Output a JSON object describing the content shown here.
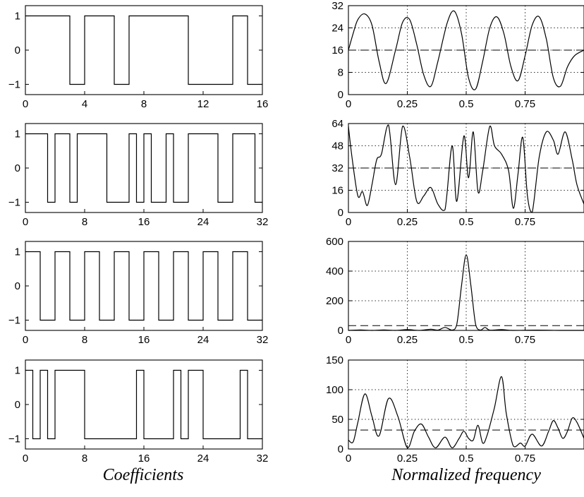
{
  "xlabels": {
    "left": "Coefficients",
    "right": "Normalized frequency"
  },
  "style": {
    "line": "#000000",
    "background": "#ffffff"
  },
  "chart_data": [
    {
      "type": "line",
      "panel": "left",
      "xlim": [
        0,
        16
      ],
      "ylim": [
        -1.3,
        1.3
      ],
      "xticks": [
        0,
        4,
        8,
        12,
        16
      ],
      "xtick_labels": [
        "0",
        "4",
        "8",
        "12",
        "16"
      ],
      "yticks": [
        -1,
        0,
        1
      ],
      "ytick_labels": [
        "−1",
        "0",
        "1"
      ],
      "transitions": [
        0,
        3,
        4,
        6,
        7,
        11,
        14,
        15,
        16
      ],
      "values": [
        1,
        -1,
        1,
        -1,
        1,
        -1,
        1,
        -1
      ]
    },
    {
      "type": "line",
      "panel": "left",
      "xlim": [
        0,
        32
      ],
      "ylim": [
        -1.3,
        1.3
      ],
      "xticks": [
        0,
        8,
        16,
        24,
        32
      ],
      "xtick_labels": [
        "0",
        "8",
        "16",
        "24",
        "32"
      ],
      "yticks": [
        -1,
        0,
        1
      ],
      "ytick_labels": [
        "−1",
        "0",
        "1"
      ],
      "transitions": [
        0,
        3,
        4,
        6,
        7,
        11,
        14,
        15,
        16,
        17,
        19,
        20,
        22,
        26,
        28,
        31,
        32
      ],
      "values": [
        1,
        -1,
        1,
        -1,
        1,
        -1,
        1,
        -1,
        1,
        -1,
        1,
        -1,
        1,
        -1,
        1,
        -1
      ]
    },
    {
      "type": "line",
      "panel": "left",
      "xlim": [
        0,
        32
      ],
      "ylim": [
        -1.3,
        1.3
      ],
      "xticks": [
        0,
        8,
        16,
        24,
        32
      ],
      "xtick_labels": [
        "0",
        "8",
        "16",
        "24",
        "32"
      ],
      "yticks": [
        -1,
        0,
        1
      ],
      "ytick_labels": [
        "−1",
        "0",
        "1"
      ],
      "transitions": [
        0,
        2,
        4,
        6,
        8,
        10,
        12,
        14,
        16,
        18,
        20,
        22,
        24,
        26,
        28,
        30,
        32
      ],
      "values": [
        1,
        -1,
        1,
        -1,
        1,
        -1,
        1,
        -1,
        1,
        -1,
        1,
        -1,
        1,
        -1,
        1,
        -1
      ]
    },
    {
      "type": "line",
      "panel": "left",
      "xlim": [
        0,
        32
      ],
      "ylim": [
        -1.3,
        1.3
      ],
      "xticks": [
        0,
        8,
        16,
        24,
        32
      ],
      "xtick_labels": [
        "0",
        "8",
        "16",
        "24",
        "32"
      ],
      "yticks": [
        -1,
        0,
        1
      ],
      "ytick_labels": [
        "−1",
        "0",
        "1"
      ],
      "transitions": [
        0,
        1,
        2,
        3,
        4,
        8,
        15,
        16,
        20,
        21,
        22,
        24,
        29,
        30,
        32
      ],
      "values": [
        1,
        -1,
        1,
        -1,
        1,
        -1,
        1,
        -1,
        1,
        -1,
        1,
        -1,
        1,
        -1
      ]
    },
    {
      "type": "line",
      "panel": "right",
      "xlim": [
        0,
        1
      ],
      "ylim": [
        0,
        32
      ],
      "xticks": [
        0,
        0.25,
        0.5,
        0.75,
        1
      ],
      "xtick_labels": [
        "0",
        "0.25",
        "0.5",
        "0.75",
        ""
      ],
      "yticks": [
        0,
        8,
        16,
        24,
        32
      ],
      "ytick_labels": [
        "0",
        "8",
        "16",
        "24",
        "32"
      ],
      "grid": true,
      "reference_level": 16,
      "x": [
        0,
        0.02,
        0.04,
        0.07,
        0.1,
        0.13,
        0.16,
        0.2,
        0.23,
        0.26,
        0.29,
        0.32,
        0.35,
        0.38,
        0.42,
        0.45,
        0.48,
        0.51,
        0.54,
        0.57,
        0.6,
        0.63,
        0.66,
        0.69,
        0.72,
        0.75,
        0.78,
        0.81,
        0.84,
        0.87,
        0.9,
        0.93,
        0.96,
        1
      ],
      "y": [
        16,
        22,
        27,
        29,
        25,
        12,
        4,
        16,
        26,
        27,
        18,
        7,
        3,
        12,
        26,
        30,
        22,
        6,
        2,
        12,
        24,
        28,
        22,
        10,
        5,
        14,
        25,
        28,
        20,
        6,
        3,
        10,
        14,
        16
      ]
    },
    {
      "type": "line",
      "panel": "right",
      "xlim": [
        0,
        1
      ],
      "ylim": [
        0,
        64
      ],
      "xticks": [
        0,
        0.25,
        0.5,
        0.75,
        1
      ],
      "xtick_labels": [
        "0",
        "0.25",
        "0.5",
        "0.75",
        ""
      ],
      "yticks": [
        0,
        16,
        32,
        48,
        64
      ],
      "ytick_labels": [
        "0",
        "16",
        "32",
        "48",
        "64"
      ],
      "grid": true,
      "reference_level": 32,
      "x": [
        0,
        0.015,
        0.04,
        0.06,
        0.08,
        0.1,
        0.12,
        0.14,
        0.17,
        0.2,
        0.23,
        0.26,
        0.29,
        0.32,
        0.35,
        0.38,
        0.41,
        0.44,
        0.46,
        0.49,
        0.51,
        0.53,
        0.55,
        0.57,
        0.6,
        0.62,
        0.65,
        0.68,
        0.7,
        0.72,
        0.74,
        0.76,
        0.78,
        0.81,
        0.84,
        0.87,
        0.89,
        0.92,
        0.95,
        0.97,
        1
      ],
      "y": [
        62,
        40,
        12,
        15,
        5,
        20,
        38,
        42,
        63,
        20,
        62,
        40,
        8,
        12,
        18,
        6,
        2,
        48,
        8,
        55,
        25,
        58,
        15,
        30,
        62,
        48,
        42,
        30,
        3,
        28,
        54,
        12,
        0,
        40,
        58,
        52,
        42,
        58,
        38,
        20,
        6
      ]
    },
    {
      "type": "line",
      "panel": "right",
      "xlim": [
        0,
        1
      ],
      "ylim": [
        0,
        600
      ],
      "xticks": [
        0,
        0.25,
        0.5,
        0.75,
        1
      ],
      "xtick_labels": [
        "0",
        "0.25",
        "0.5",
        "0.75",
        ""
      ],
      "yticks": [
        0,
        200,
        400,
        600
      ],
      "ytick_labels": [
        "0",
        "200",
        "400",
        "600"
      ],
      "grid": true,
      "reference_level": 32,
      "x": [
        0,
        0.05,
        0.1,
        0.15,
        0.2,
        0.25,
        0.3,
        0.35,
        0.38,
        0.41,
        0.44,
        0.46,
        0.48,
        0.5,
        0.52,
        0.54,
        0.56,
        0.58,
        0.6,
        0.65,
        0.7,
        0.8,
        0.9,
        1
      ],
      "y": [
        0,
        3,
        0,
        3,
        0,
        5,
        0,
        8,
        2,
        20,
        2,
        40,
        300,
        510,
        300,
        40,
        2,
        20,
        2,
        5,
        0,
        2,
        0,
        0
      ]
    },
    {
      "type": "line",
      "panel": "right",
      "xlim": [
        0,
        1
      ],
      "ylim": [
        0,
        150
      ],
      "xticks": [
        0,
        0.25,
        0.5,
        0.75,
        1
      ],
      "xtick_labels": [
        "0",
        "0.25",
        "0.5",
        "0.75",
        ""
      ],
      "yticks": [
        0,
        50,
        100,
        150
      ],
      "ytick_labels": [
        "0",
        "50",
        "100",
        "150"
      ],
      "grid": true,
      "reference_level": 32,
      "x": [
        0,
        0.02,
        0.04,
        0.07,
        0.1,
        0.13,
        0.17,
        0.21,
        0.25,
        0.28,
        0.31,
        0.34,
        0.37,
        0.41,
        0.44,
        0.47,
        0.49,
        0.51,
        0.53,
        0.55,
        0.57,
        0.59,
        0.62,
        0.65,
        0.67,
        0.7,
        0.73,
        0.75,
        0.78,
        0.82,
        0.85,
        0.87,
        0.89,
        0.91,
        0.93,
        0.95,
        0.97,
        1
      ],
      "y": [
        15,
        12,
        45,
        93,
        55,
        22,
        85,
        55,
        2,
        30,
        42,
        20,
        2,
        20,
        2,
        18,
        30,
        18,
        15,
        40,
        10,
        25,
        70,
        122,
        60,
        5,
        10,
        5,
        25,
        5,
        30,
        48,
        35,
        18,
        30,
        52,
        45,
        18
      ]
    }
  ]
}
